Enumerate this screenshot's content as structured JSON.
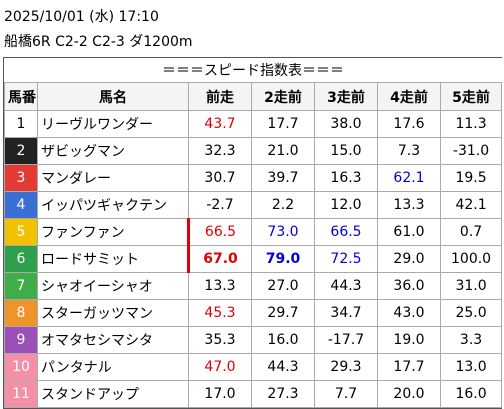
{
  "header": {
    "datetime": "2025/10/01 (水) 17:10",
    "race": "船橋6R C2-2 C2-3 ダ1200m"
  },
  "table": {
    "title": "＝＝＝スピード指数表＝＝＝",
    "columns": [
      "馬番",
      "馬名",
      "前走",
      "2走前",
      "3走前",
      "4走前",
      "5走前"
    ],
    "rows": [
      {
        "number": "1",
        "badge": "#ffffff",
        "badge_text": "#000000",
        "name": "リーヴルワンダー",
        "values": [
          "43.7",
          "17.7",
          "38.0",
          "17.6",
          "11.3"
        ],
        "colors": [
          "#e00000",
          "#000000",
          "#000000",
          "#000000",
          "#000000"
        ],
        "bold": [
          false,
          false,
          false,
          false,
          false
        ]
      },
      {
        "number": "2",
        "badge": "#222222",
        "badge_text": "#ffffff",
        "name": "ザビッグマン",
        "values": [
          "32.3",
          "21.0",
          "15.0",
          "7.3",
          "-31.0"
        ],
        "colors": [
          "#000000",
          "#000000",
          "#000000",
          "#000000",
          "#000000"
        ],
        "bold": [
          false,
          false,
          false,
          false,
          false
        ]
      },
      {
        "number": "3",
        "badge": "#e53935",
        "badge_text": "#ffffff",
        "name": "マンダレー",
        "values": [
          "30.7",
          "39.7",
          "16.3",
          "62.1",
          "19.5"
        ],
        "colors": [
          "#000000",
          "#000000",
          "#000000",
          "#0000dd",
          "#000000"
        ],
        "bold": [
          false,
          false,
          false,
          false,
          false
        ]
      },
      {
        "number": "4",
        "badge": "#3b6fd6",
        "badge_text": "#ffffff",
        "name": "イッパツギャクテン",
        "values": [
          "-2.7",
          "2.2",
          "12.0",
          "13.3",
          "42.1"
        ],
        "colors": [
          "#000000",
          "#000000",
          "#000000",
          "#000000",
          "#000000"
        ],
        "bold": [
          false,
          false,
          false,
          false,
          false
        ]
      },
      {
        "number": "5",
        "badge": "#f2c200",
        "badge_text": "#ffffff",
        "name": "ファンファン",
        "values": [
          "66.5",
          "73.0",
          "66.5",
          "61.0",
          "0.7"
        ],
        "colors": [
          "#e00000",
          "#0000dd",
          "#0000dd",
          "#000000",
          "#000000"
        ],
        "bold": [
          false,
          false,
          false,
          false,
          false
        ]
      },
      {
        "number": "6",
        "badge": "#2e9e4f",
        "badge_text": "#ffffff",
        "name": "ロードサミット",
        "values": [
          "67.0",
          "79.0",
          "72.5",
          "29.0",
          "100.0"
        ],
        "colors": [
          "#e00000",
          "#0000dd",
          "#0000dd",
          "#000000",
          "#000000"
        ],
        "bold": [
          true,
          true,
          false,
          false,
          false
        ]
      },
      {
        "number": "7",
        "badge": "#3fae49",
        "badge_text": "#ffffff",
        "name": "シャオイーシャオ",
        "values": [
          "13.3",
          "27.0",
          "44.3",
          "36.0",
          "31.0"
        ],
        "colors": [
          "#000000",
          "#000000",
          "#000000",
          "#000000",
          "#000000"
        ],
        "bold": [
          false,
          false,
          false,
          false,
          false
        ]
      },
      {
        "number": "8",
        "badge": "#f0932b",
        "badge_text": "#ffffff",
        "name": "スターガッツマン",
        "values": [
          "45.3",
          "29.7",
          "34.7",
          "43.0",
          "25.0"
        ],
        "colors": [
          "#e00000",
          "#000000",
          "#000000",
          "#000000",
          "#000000"
        ],
        "bold": [
          false,
          false,
          false,
          false,
          false
        ]
      },
      {
        "number": "9",
        "badge": "#9b4fb8",
        "badge_text": "#ffffff",
        "name": "オマタセシマシタ",
        "values": [
          "35.3",
          "16.0",
          "-17.7",
          "19.0",
          "3.3"
        ],
        "colors": [
          "#000000",
          "#000000",
          "#000000",
          "#000000",
          "#000000"
        ],
        "bold": [
          false,
          false,
          false,
          false,
          false
        ]
      },
      {
        "number": "10",
        "badge": "#f48fa8",
        "badge_text": "#ffffff",
        "name": "パンタナル",
        "values": [
          "47.0",
          "44.3",
          "29.3",
          "17.7",
          "13.0"
        ],
        "colors": [
          "#e00000",
          "#000000",
          "#000000",
          "#000000",
          "#000000"
        ],
        "bold": [
          false,
          false,
          false,
          false,
          false
        ]
      },
      {
        "number": "11",
        "badge": "#f48fa8",
        "badge_text": "#ffffff",
        "name": "スタンドアップ",
        "values": [
          "17.0",
          "27.3",
          "7.7",
          "20.0",
          "16.0"
        ],
        "colors": [
          "#000000",
          "#000000",
          "#000000",
          "#000000",
          "#000000"
        ],
        "bold": [
          false,
          false,
          false,
          false,
          false
        ]
      }
    ]
  }
}
